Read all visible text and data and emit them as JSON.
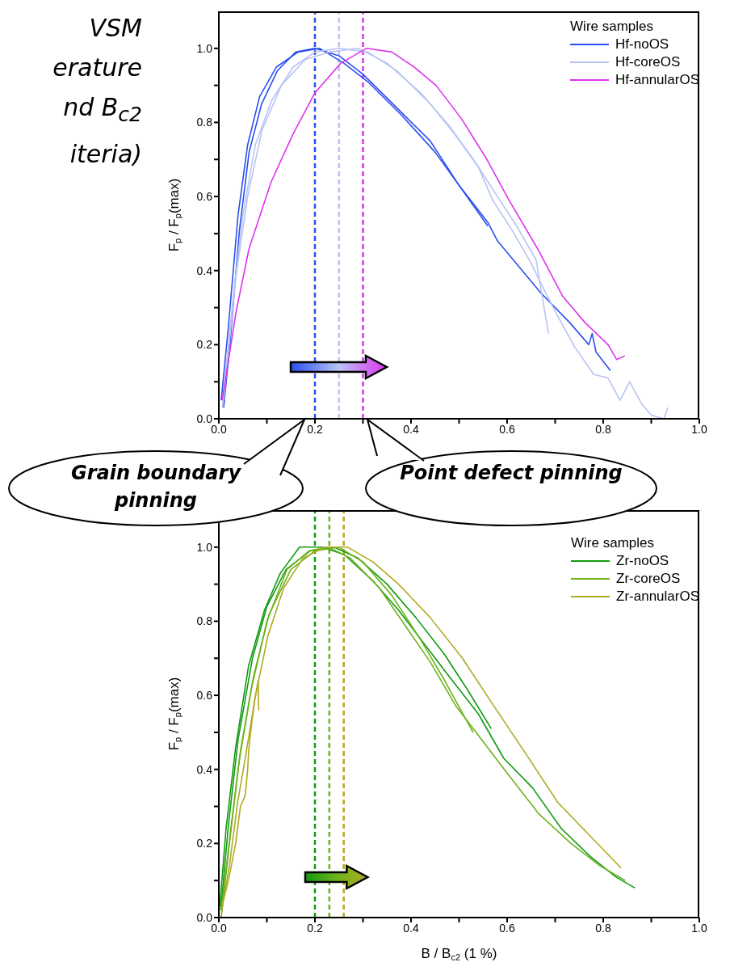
{
  "chart_data": [
    {
      "type": "line",
      "annotations": [
        "VSM",
        "erature",
        "nd B$_{c2}$",
        "iteria)",
        "Grain boundary pinning",
        "Point defect pinning"
      ],
      "ylabel": "F$_{p}$ / F$_{p}$(max)",
      "legend_title": "Wire samples",
      "legend": "top right",
      "xlim": [
        0,
        1
      ],
      "ylim": [
        0,
        1.1
      ],
      "xticks": [
        {
          "value": 0,
          "label": "0.0"
        },
        {
          "value": 0.1,
          "label": null
        },
        0.2,
        {
          "value": 0.3,
          "label": null
        },
        0.4,
        {
          "value": 0.5,
          "label": null
        },
        0.6,
        {
          "value": 0.7,
          "label": null
        },
        0.8,
        {
          "value": 0.9,
          "label": null
        },
        {
          "value": 1,
          "label": "1.0"
        }
      ],
      "yticks": [
        {
          "value": 0,
          "label": "0.0"
        },
        {
          "value": 0.1,
          "label": null
        },
        0.2,
        {
          "value": 0.3,
          "label": null
        },
        0.4,
        {
          "value": 0.5,
          "label": null
        },
        0.6,
        {
          "value": 0.7,
          "label": null
        },
        0.8,
        {
          "value": 0.9,
          "label": null
        },
        {
          "value": 1,
          "label": "1.0"
        }
      ],
      "grid": false,
      "marker": "none",
      "line_style": "solid",
      "ref_lines": [
        {
          "axis": "x",
          "value": 0.2,
          "color": "#2a4ff0",
          "line_style": "dashed"
        },
        {
          "axis": "x",
          "value": 0.25,
          "color": "#b8c4f4",
          "line_style": "dashed"
        },
        {
          "axis": "x",
          "value": 0.3,
          "color": "#dd33ee",
          "line_style": "dashed"
        }
      ],
      "series": [
        {
          "name": "Hf-noOS",
          "color": "#2a4ff0",
          "x": [
            0.01,
            0.023,
            0.043,
            0.063,
            0.089,
            0.122,
            0.16,
            0.2,
            0.25,
            0.3,
            0.37,
            0.44,
            0.5,
            0.56,
            0.58,
            0.67,
            0.73,
            0.77,
            0.777,
            0.785,
            0.815
          ],
          "values": [
            0.03,
            0.2,
            0.51,
            0.72,
            0.85,
            0.94,
            0.99,
            1.0,
            0.98,
            0.93,
            0.84,
            0.75,
            0.63,
            0.53,
            0.48,
            0.34,
            0.26,
            0.2,
            0.23,
            0.18,
            0.13
          ]
        },
        {
          "color": "#2a4ff0",
          "x": [
            0.005,
            0.02,
            0.04,
            0.06,
            0.085,
            0.12,
            0.165,
            0.21,
            0.26,
            0.31,
            0.38,
            0.45,
            0.5,
            0.56
          ],
          "values": [
            0.05,
            0.25,
            0.55,
            0.74,
            0.87,
            0.95,
            0.99,
            1.0,
            0.96,
            0.91,
            0.82,
            0.72,
            0.63,
            0.52
          ]
        },
        {
          "name": "Hf-coreOS",
          "color": "#b8c4f4",
          "x": [
            0.007,
            0.03,
            0.05,
            0.076,
            0.11,
            0.155,
            0.2,
            0.25,
            0.31,
            0.37,
            0.44,
            0.49,
            0.54,
            0.57,
            0.61,
            0.65,
            0.68,
            0.7,
            0.74,
            0.78,
            0.81,
            0.835,
            0.855,
            0.88,
            0.9,
            0.927,
            0.934
          ],
          "values": [
            0.03,
            0.33,
            0.55,
            0.74,
            0.86,
            0.95,
            0.99,
            1.0,
            0.99,
            0.94,
            0.85,
            0.77,
            0.68,
            0.59,
            0.51,
            0.42,
            0.34,
            0.29,
            0.195,
            0.12,
            0.11,
            0.05,
            0.1,
            0.04,
            0.01,
            0.0,
            0.03
          ]
        },
        {
          "color": "#b8c4f4",
          "x": [
            0.01,
            0.035,
            0.06,
            0.09,
            0.13,
            0.18,
            0.23,
            0.29,
            0.35,
            0.42,
            0.48,
            0.53,
            0.58,
            0.62,
            0.66,
            0.686
          ],
          "values": [
            0.05,
            0.38,
            0.6,
            0.78,
            0.9,
            0.97,
            0.99,
            1.0,
            0.96,
            0.88,
            0.79,
            0.7,
            0.6,
            0.52,
            0.43,
            0.23
          ]
        },
        {
          "name": "Hf-annularOS",
          "color": "#dd33ee",
          "x": [
            0.007,
            0.036,
            0.063,
            0.109,
            0.155,
            0.2,
            0.254,
            0.307,
            0.36,
            0.406,
            0.452,
            0.505,
            0.558,
            0.604,
            0.663,
            0.716,
            0.762,
            0.81,
            0.828,
            0.845
          ],
          "values": [
            0.05,
            0.29,
            0.46,
            0.64,
            0.77,
            0.88,
            0.96,
            1.0,
            0.99,
            0.95,
            0.9,
            0.81,
            0.7,
            0.59,
            0.46,
            0.33,
            0.26,
            0.2,
            0.16,
            0.17
          ]
        }
      ]
    },
    {
      "type": "line",
      "xlabel": "B / B$_{c2}$ (1 %)",
      "ylabel": "F$_{p}$ / F$_{p}$(max)",
      "legend_title": "Wire samples",
      "legend": "top right",
      "xlim": [
        0,
        1
      ],
      "ylim": [
        0,
        1.1
      ],
      "xticks": [
        {
          "value": 0,
          "label": "0.0"
        },
        {
          "value": 0.1,
          "label": null
        },
        0.2,
        {
          "value": 0.3,
          "label": null
        },
        0.4,
        {
          "value": 0.5,
          "label": null
        },
        0.6,
        {
          "value": 0.7,
          "label": null
        },
        0.8,
        {
          "value": 0.9,
          "label": null
        },
        {
          "value": 1,
          "label": "1.0"
        }
      ],
      "yticks": [
        {
          "value": 0,
          "label": "0.0"
        },
        {
          "value": 0.1,
          "label": null
        },
        0.2,
        {
          "value": 0.3,
          "label": null
        },
        0.4,
        {
          "value": 0.5,
          "label": null
        },
        0.6,
        {
          "value": 0.7,
          "label": null
        },
        0.8,
        {
          "value": 0.9,
          "label": null
        },
        {
          "value": 1,
          "label": "1.0"
        }
      ],
      "grid": false,
      "marker": "none",
      "line_style": "solid",
      "ref_lines": [
        {
          "axis": "x",
          "value": 0.2,
          "color": "#129a12",
          "line_style": "dashed"
        },
        {
          "axis": "x",
          "value": 0.23,
          "color": "#6db31c",
          "line_style": "dashed"
        },
        {
          "axis": "x",
          "value": 0.26,
          "color": "#b0aa20",
          "line_style": "dashed"
        }
      ],
      "series": [
        {
          "name": "Zr-noOS",
          "color": "#129a12",
          "x": [
            0.002,
            0.015,
            0.035,
            0.062,
            0.095,
            0.128,
            0.168,
            0.215,
            0.261,
            0.32,
            0.374,
            0.427,
            0.48,
            0.54,
            0.593,
            0.653,
            0.713,
            0.773,
            0.826,
            0.866
          ],
          "values": [
            0.03,
            0.24,
            0.46,
            0.68,
            0.83,
            0.93,
            1.0,
            1.0,
            0.98,
            0.91,
            0.83,
            0.74,
            0.65,
            0.55,
            0.43,
            0.35,
            0.24,
            0.165,
            0.11,
            0.08
          ]
        },
        {
          "color": "#129a12",
          "x": [
            0.004,
            0.02,
            0.04,
            0.07,
            0.1,
            0.14,
            0.19,
            0.24,
            0.29,
            0.35,
            0.41,
            0.47,
            0.52,
            0.567
          ],
          "values": [
            0.02,
            0.25,
            0.48,
            0.7,
            0.84,
            0.94,
            0.99,
            1.0,
            0.97,
            0.9,
            0.81,
            0.71,
            0.61,
            0.51
          ]
        },
        {
          "name": "Zr-coreOS",
          "color": "#6db31c",
          "x": [
            0.005,
            0.022,
            0.042,
            0.068,
            0.1,
            0.142,
            0.188,
            0.228,
            0.274,
            0.334,
            0.387,
            0.44,
            0.494,
            0.547,
            0.6,
            0.666,
            0.733,
            0.793,
            0.846
          ],
          "values": [
            0.0,
            0.2,
            0.42,
            0.62,
            0.8,
            0.94,
            0.99,
            1.0,
            0.97,
            0.89,
            0.79,
            0.69,
            0.57,
            0.48,
            0.39,
            0.28,
            0.2,
            0.14,
            0.1
          ]
        },
        {
          "color": "#6db31c",
          "x": [
            0.006,
            0.025,
            0.045,
            0.072,
            0.105,
            0.15,
            0.2,
            0.25,
            0.3,
            0.36,
            0.42,
            0.47,
            0.529
          ],
          "values": [
            0.03,
            0.24,
            0.45,
            0.65,
            0.82,
            0.94,
            0.99,
            1.0,
            0.96,
            0.87,
            0.75,
            0.64,
            0.5
          ]
        },
        {
          "name": "Zr-annularOS",
          "color": "#b0aa20",
          "x": [
            0.005,
            0.022,
            0.039,
            0.055,
            0.075,
            0.102,
            0.135,
            0.175,
            0.221,
            0.268,
            0.321,
            0.374,
            0.44,
            0.507,
            0.573,
            0.64,
            0.706,
            0.773,
            0.837
          ],
          "values": [
            0.01,
            0.14,
            0.31,
            0.43,
            0.59,
            0.76,
            0.89,
            0.97,
            1.0,
            1.0,
            0.96,
            0.9,
            0.81,
            0.7,
            0.57,
            0.44,
            0.31,
            0.22,
            0.134
          ]
        },
        {
          "color": "#b0aa20",
          "x": [
            0.006,
            0.02,
            0.035,
            0.045,
            0.055,
            0.06,
            0.062,
            0.068,
            0.075,
            0.082,
            0.083
          ],
          "values": [
            0.03,
            0.1,
            0.2,
            0.3,
            0.33,
            0.4,
            0.45,
            0.52,
            0.59,
            0.64,
            0.56
          ]
        }
      ]
    }
  ]
}
